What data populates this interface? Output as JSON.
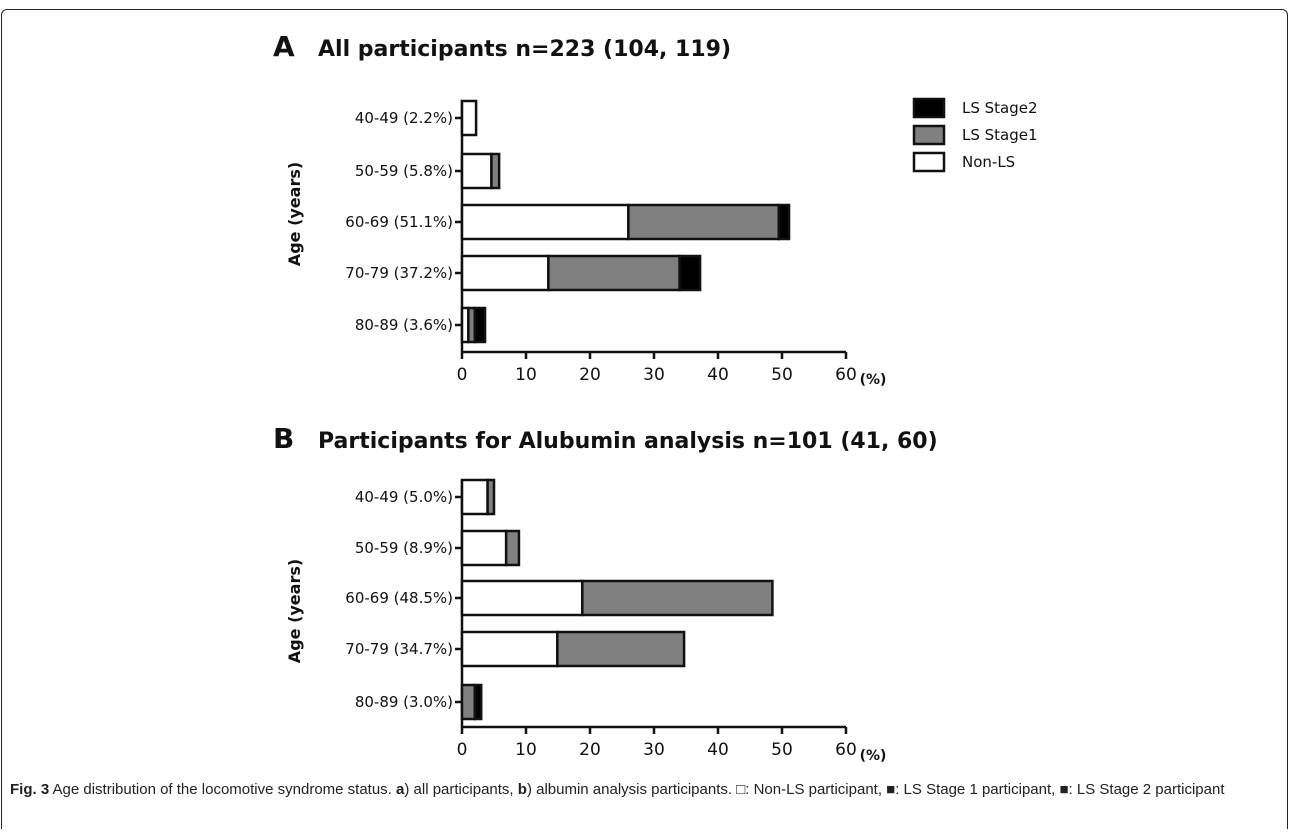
{
  "chart_data": [
    {
      "type": "bar",
      "orientation": "horizontal",
      "stacked": true,
      "panel": "A",
      "title": "All participants n=223 (104, 119)",
      "ylabel": "Age (years)",
      "xlabel": "",
      "x_unit": "(%)",
      "xlim": [
        0,
        60
      ],
      "xticks": [
        0,
        10,
        20,
        30,
        40,
        50,
        60
      ],
      "categories": [
        "40-49 (2.2%)",
        "50-59 (5.8%)",
        "60-69 (51.1%)",
        "70-79 (37.2%)",
        "80-89 (3.6%)"
      ],
      "series": [
        {
          "name": "Non-LS",
          "color": "#ffffff",
          "values": [
            2.2,
            4.6,
            26.0,
            13.5,
            1.0
          ]
        },
        {
          "name": "LS Stage1",
          "color": "#808080",
          "values": [
            0.0,
            1.2,
            23.5,
            20.5,
            1.0
          ]
        },
        {
          "name": "LS Stage2",
          "color": "#000000",
          "values": [
            0.0,
            0.0,
            1.6,
            3.2,
            1.6
          ]
        }
      ],
      "legend": {
        "position": "top-right",
        "order": [
          "LS Stage2",
          "LS Stage1",
          "Non-LS"
        ]
      }
    },
    {
      "type": "bar",
      "orientation": "horizontal",
      "stacked": true,
      "panel": "B",
      "title": "Participants for Alubumin analysis n=101 (41, 60)",
      "ylabel": "Age (years)",
      "xlabel": "",
      "x_unit": "(%)",
      "xlim": [
        0,
        60
      ],
      "xticks": [
        0,
        10,
        20,
        30,
        40,
        50,
        60
      ],
      "categories": [
        "40-49 (5.0%)",
        "50-59 (8.9%)",
        "60-69 (48.5%)",
        "70-79 (34.7%)",
        "80-89 (3.0%)"
      ],
      "series": [
        {
          "name": "Non-LS",
          "color": "#ffffff",
          "values": [
            4.0,
            6.9,
            18.8,
            14.9,
            0.0
          ]
        },
        {
          "name": "LS Stage1",
          "color": "#808080",
          "values": [
            1.0,
            2.0,
            29.7,
            19.8,
            2.0
          ]
        },
        {
          "name": "LS Stage2",
          "color": "#000000",
          "values": [
            0.0,
            0.0,
            0.0,
            0.0,
            1.0
          ]
        }
      ]
    }
  ],
  "caption": {
    "label": "Fig. 3",
    "text_1": " Age distribution of the locomotive syndrome status. ",
    "a": "a",
    "text_2": ") all participants, ",
    "b": "b",
    "text_3": ") albumin analysis participants. □: Non-LS participant, ■: LS Stage 1 participant, ■: LS Stage 2 participant"
  }
}
